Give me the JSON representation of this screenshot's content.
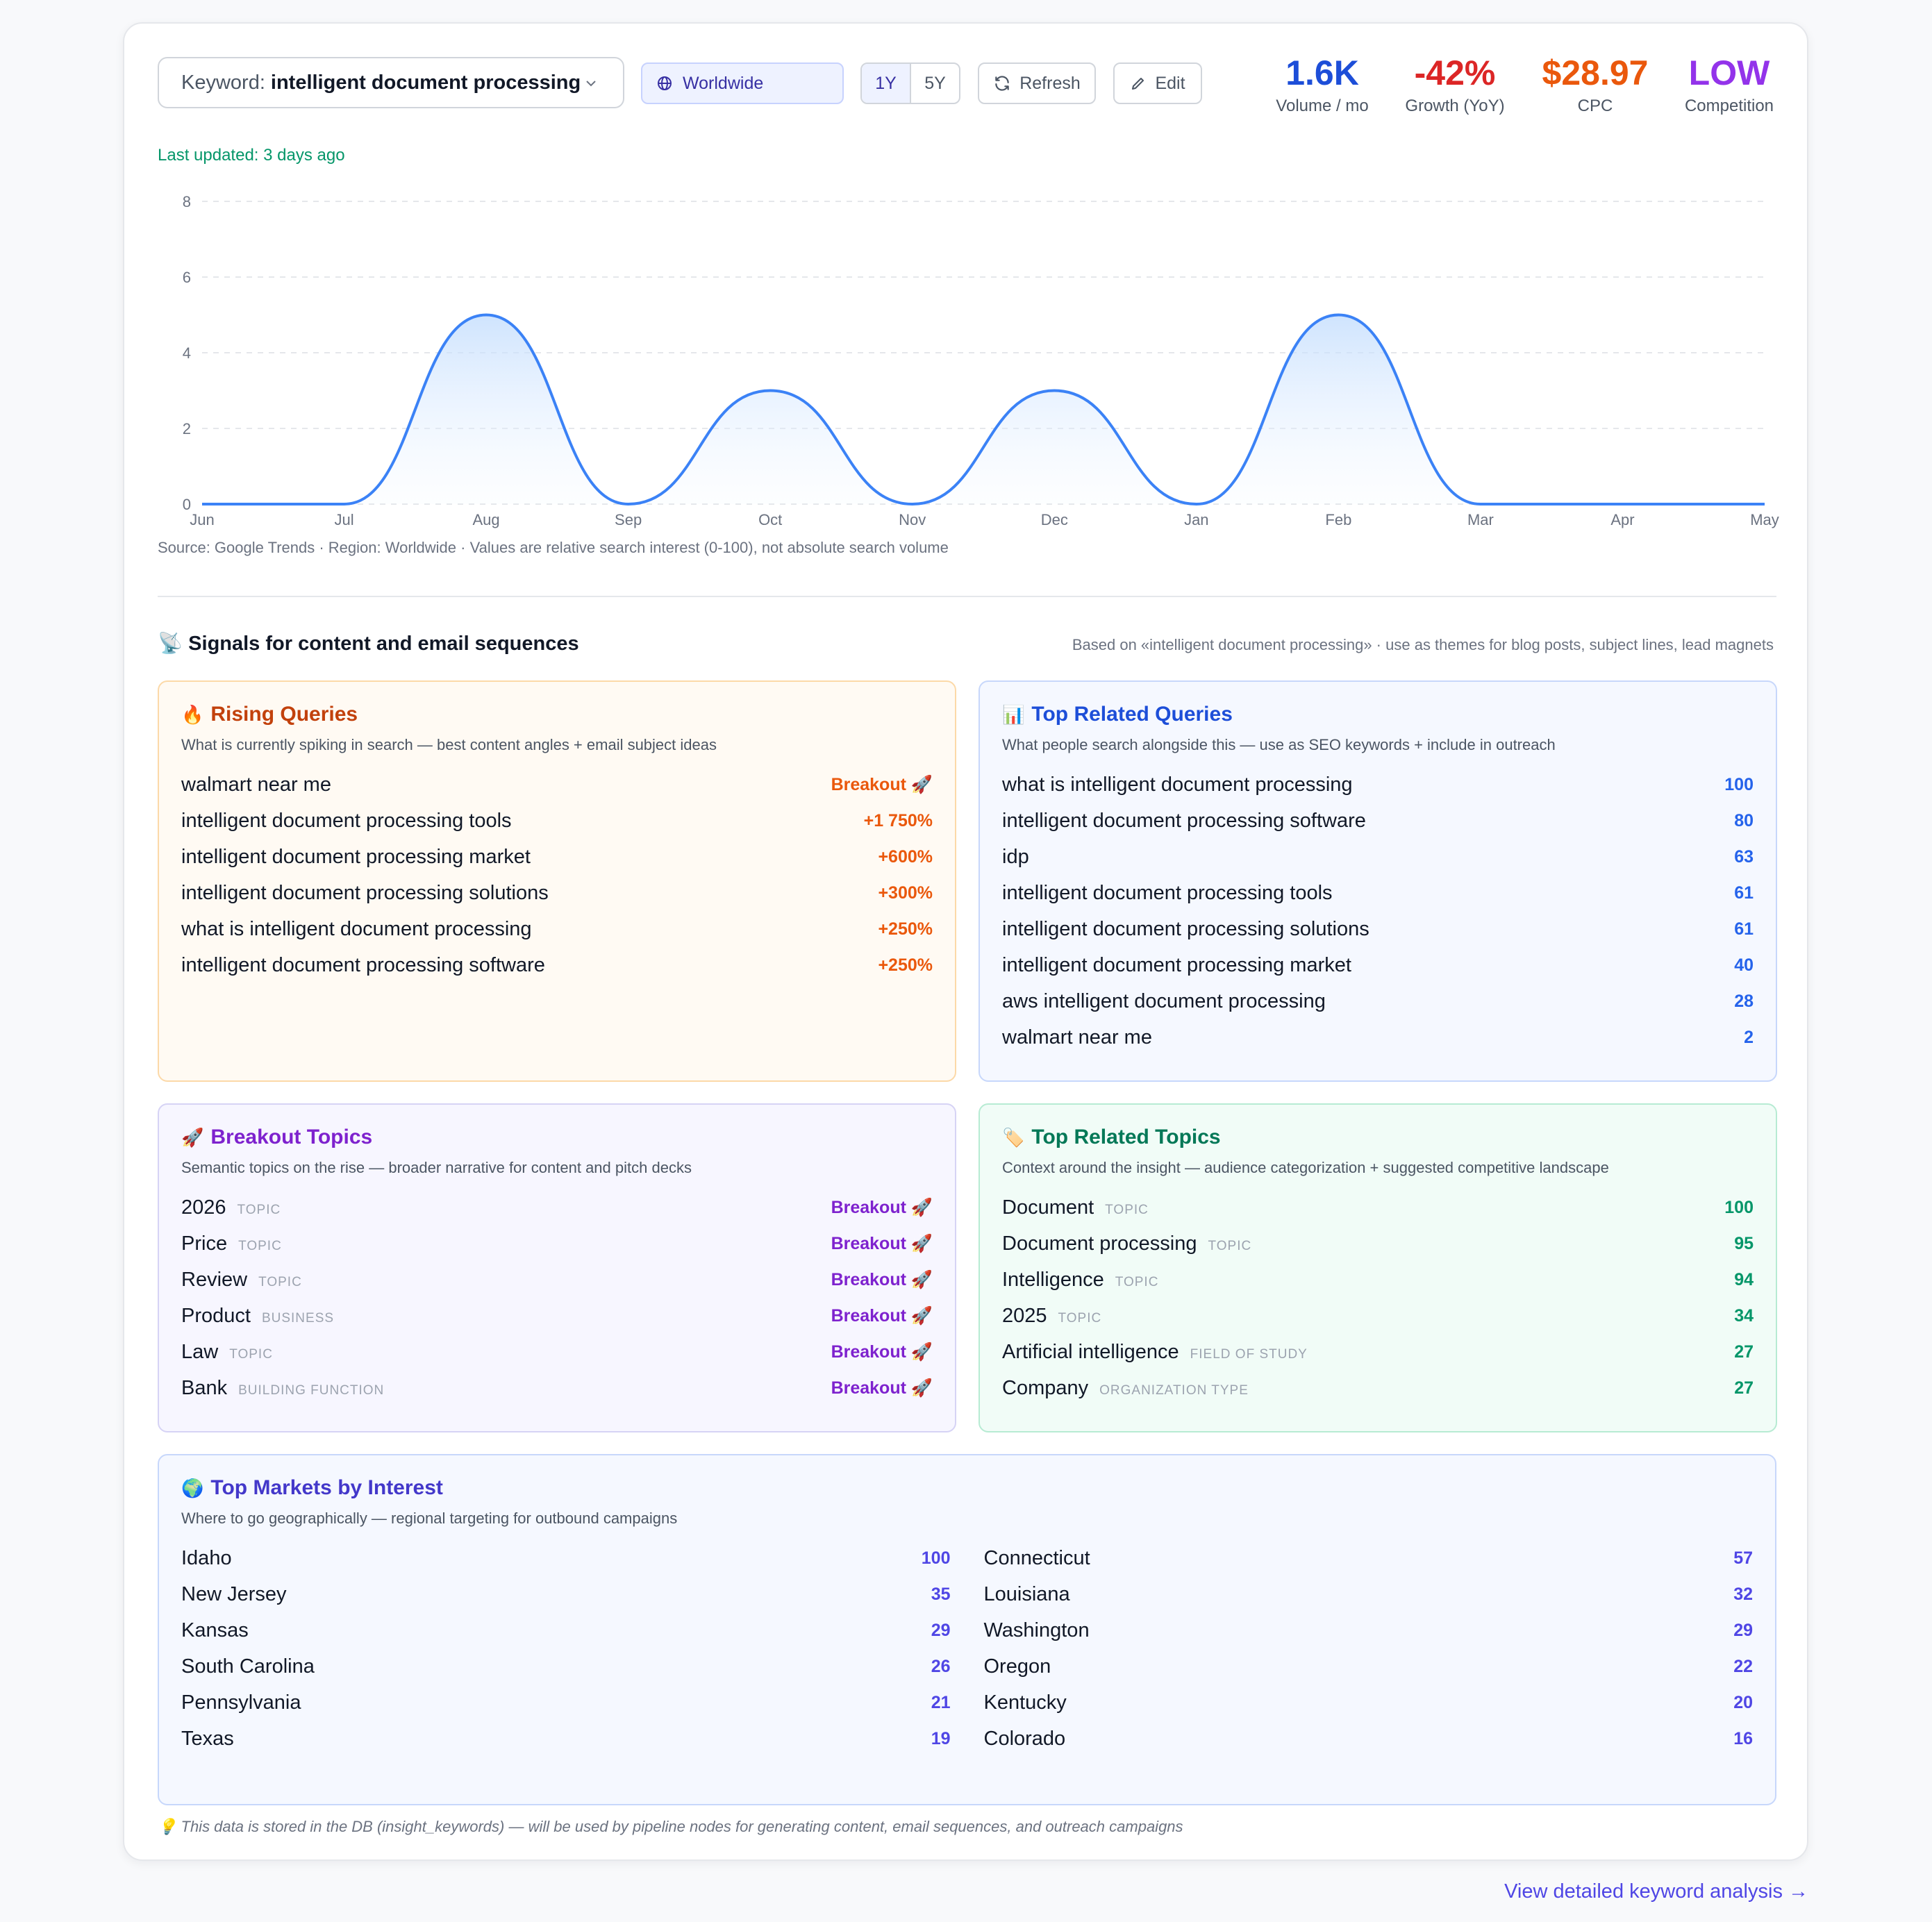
{
  "header": {
    "keyword_label": "Keyword:",
    "keyword_value": "intelligent document processing",
    "region": "Worldwide",
    "ranges": [
      "1Y",
      "5Y"
    ],
    "active_range": "1Y",
    "refresh_label": "Refresh",
    "edit_label": "Edit"
  },
  "stats": [
    {
      "value": "1.6K",
      "label": "Volume / mo",
      "color": "#1d4ed8"
    },
    {
      "value": "-42%",
      "label": "Growth (YoY)",
      "color": "#dc2626"
    },
    {
      "value": "$28.97",
      "label": "CPC",
      "color": "#ea580c"
    },
    {
      "value": "LOW",
      "label": "Competition",
      "color": "#9333ea"
    }
  ],
  "last_updated": "Last updated: 3 days ago",
  "chart_data": {
    "type": "area",
    "x": [
      "Jun",
      "Jul",
      "Aug",
      "Sep",
      "Oct",
      "Nov",
      "Dec",
      "Jan",
      "Feb",
      "Mar",
      "Apr",
      "May"
    ],
    "values": [
      0,
      0,
      5,
      0,
      3,
      0,
      3,
      0,
      5,
      0,
      0,
      0
    ],
    "ylim": [
      0,
      8
    ],
    "yticks": [
      0,
      2,
      4,
      6,
      8
    ],
    "grid": true,
    "line_color": "#3b82f6"
  },
  "source_note": "Source: Google Trends · Region: Worldwide · Values are relative search interest (0-100), not absolute search volume",
  "signals": {
    "title_icon": "📡",
    "title": "Signals for content and email sequences",
    "note": "Based on «intelligent document processing» · use as themes for blog posts, subject lines, lead magnets"
  },
  "rising": {
    "icon": "🔥",
    "title": "Rising Queries",
    "subtitle": "What is currently spiking in search — best content angles + email subject ideas",
    "items": [
      {
        "name": "walmart near me",
        "value": "Breakout 🚀"
      },
      {
        "name": "intelligent document processing tools",
        "value": "+1 750%"
      },
      {
        "name": "intelligent document processing market",
        "value": "+600%"
      },
      {
        "name": "intelligent document processing solutions",
        "value": "+300%"
      },
      {
        "name": "what is intelligent document processing",
        "value": "+250%"
      },
      {
        "name": "intelligent document processing software",
        "value": "+250%"
      }
    ]
  },
  "related": {
    "icon": "📊",
    "title": "Top Related Queries",
    "subtitle": "What people search alongside this — use as SEO keywords + include in outreach",
    "items": [
      {
        "name": "what is intelligent document processing",
        "value": "100"
      },
      {
        "name": "intelligent document processing software",
        "value": "80"
      },
      {
        "name": "idp",
        "value": "63"
      },
      {
        "name": "intelligent document processing tools",
        "value": "61"
      },
      {
        "name": "intelligent document processing solutions",
        "value": "61"
      },
      {
        "name": "intelligent document processing market",
        "value": "40"
      },
      {
        "name": "aws intelligent document processing",
        "value": "28"
      },
      {
        "name": "walmart near me",
        "value": "2"
      }
    ]
  },
  "breakout": {
    "icon": "🚀",
    "title": "Breakout Topics",
    "subtitle": "Semantic topics on the rise — broader narrative for content and pitch decks",
    "items": [
      {
        "name": "2026",
        "tag": "TOPIC",
        "value": "Breakout 🚀"
      },
      {
        "name": "Price",
        "tag": "TOPIC",
        "value": "Breakout 🚀"
      },
      {
        "name": "Review",
        "tag": "TOPIC",
        "value": "Breakout 🚀"
      },
      {
        "name": "Product",
        "tag": "BUSINESS",
        "value": "Breakout 🚀"
      },
      {
        "name": "Law",
        "tag": "TOPIC",
        "value": "Breakout 🚀"
      },
      {
        "name": "Bank",
        "tag": "BUILDING FUNCTION",
        "value": "Breakout 🚀"
      }
    ]
  },
  "related_topics": {
    "icon": "🏷️",
    "title": "Top Related Topics",
    "subtitle": "Context around the insight — audience categorization + suggested competitive landscape",
    "items": [
      {
        "name": "Document",
        "tag": "TOPIC",
        "value": "100"
      },
      {
        "name": "Document processing",
        "tag": "TOPIC",
        "value": "95"
      },
      {
        "name": "Intelligence",
        "tag": "TOPIC",
        "value": "94"
      },
      {
        "name": "2025",
        "tag": "TOPIC",
        "value": "34"
      },
      {
        "name": "Artificial intelligence",
        "tag": "FIELD OF STUDY",
        "value": "27"
      },
      {
        "name": "Company",
        "tag": "ORGANIZATION TYPE",
        "value": "27"
      }
    ]
  },
  "markets": {
    "icon": "🌍",
    "title": "Top Markets by Interest",
    "subtitle": "Where to go geographically — regional targeting for outbound campaigns",
    "left": [
      {
        "name": "Idaho",
        "value": "100"
      },
      {
        "name": "New Jersey",
        "value": "35"
      },
      {
        "name": "Kansas",
        "value": "29"
      },
      {
        "name": "South Carolina",
        "value": "26"
      },
      {
        "name": "Pennsylvania",
        "value": "21"
      },
      {
        "name": "Texas",
        "value": "19"
      }
    ],
    "right": [
      {
        "name": "Connecticut",
        "value": "57"
      },
      {
        "name": "Louisiana",
        "value": "32"
      },
      {
        "name": "Washington",
        "value": "29"
      },
      {
        "name": "Oregon",
        "value": "22"
      },
      {
        "name": "Kentucky",
        "value": "20"
      },
      {
        "name": "Colorado",
        "value": "16"
      }
    ]
  },
  "footnote": "💡 This data is stored in the DB (insight_keywords) — will be used by pipeline nodes for generating content, email sequences, and outreach campaigns",
  "detail_link": "View detailed keyword analysis →"
}
